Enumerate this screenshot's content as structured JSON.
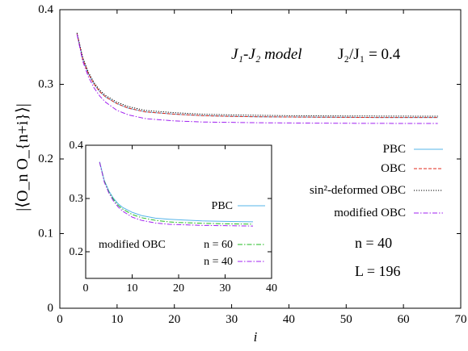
{
  "chart_data": [
    {
      "type": "line",
      "title": "",
      "xlabel": "i",
      "ylabel": "|⟨O_n O_{n+i}⟩|",
      "xlim": [
        0,
        70
      ],
      "ylim": [
        0,
        0.4
      ],
      "xticks": [
        "0",
        "10",
        "20",
        "30",
        "40",
        "50",
        "60",
        "70"
      ],
      "yticks": [
        "0",
        "0.1",
        "0.2",
        "0.3",
        "0.4"
      ],
      "grid": false,
      "legend_position": "right",
      "annotations": {
        "model_label": "J₁-J₂ model",
        "ratio_label": "J₂/J₁ = 0.4",
        "n_label": "n = 40",
        "L_label": "L = 196"
      },
      "x": [
        3,
        4,
        5,
        6,
        7,
        8,
        10,
        12,
        15,
        20,
        25,
        30,
        35,
        40,
        45,
        50,
        55,
        60,
        65,
        66
      ],
      "series": [
        {
          "name": "PBC",
          "color": "#56b4e9",
          "dash": "solid",
          "values": [
            0.368,
            0.334,
            0.314,
            0.3,
            0.29,
            0.283,
            0.274,
            0.268,
            0.263,
            0.26,
            0.258,
            0.257,
            0.2565,
            0.2562,
            0.256,
            0.2558,
            0.2556,
            0.2555,
            0.2555,
            0.2555
          ]
        },
        {
          "name": "OBC",
          "color": "#e0291b",
          "dash": "dashed",
          "values": [
            0.368,
            0.334,
            0.314,
            0.3,
            0.29,
            0.283,
            0.274,
            0.268,
            0.263,
            0.26,
            0.258,
            0.257,
            0.2565,
            0.2562,
            0.256,
            0.2558,
            0.2556,
            0.2555,
            0.2555,
            0.2555
          ]
        },
        {
          "name": "sin²-deformed OBC",
          "color": "#000000",
          "dash": "dotted",
          "values": [
            0.369,
            0.336,
            0.316,
            0.302,
            0.292,
            0.285,
            0.276,
            0.27,
            0.265,
            0.262,
            0.26,
            0.259,
            0.2585,
            0.258,
            0.2578,
            0.2576,
            0.2575,
            0.2574,
            0.2573,
            0.2573
          ]
        },
        {
          "name": "modified OBC",
          "color": "#a020f0",
          "dash": "dashdot",
          "values": [
            0.367,
            0.331,
            0.31,
            0.295,
            0.284,
            0.276,
            0.265,
            0.259,
            0.254,
            0.251,
            0.2495,
            0.249,
            0.2485,
            0.2482,
            0.248,
            0.2478,
            0.2477,
            0.2476,
            0.2475,
            0.2475
          ]
        }
      ]
    },
    {
      "type": "line",
      "title": "",
      "xlabel": "",
      "ylabel": "",
      "xlim": [
        0,
        40
      ],
      "ylim": [
        0.15,
        0.4
      ],
      "xticks": [
        "0",
        "10",
        "20",
        "30",
        "40"
      ],
      "yticks": [
        "0.2",
        "0.3",
        "0.4"
      ],
      "grid": false,
      "legend_position": "right",
      "legend_group_label": "modified OBC",
      "x": [
        3,
        4,
        5,
        6,
        7,
        8,
        10,
        12,
        15,
        18,
        20,
        25,
        30,
        34,
        36
      ],
      "series": [
        {
          "name": "PBC",
          "color": "#56b4e9",
          "dash": "solid",
          "values": [
            0.369,
            0.334,
            0.314,
            0.3,
            0.29,
            0.283,
            0.274,
            0.268,
            0.263,
            0.261,
            0.26,
            0.258,
            0.257,
            0.2565,
            0.2563
          ]
        },
        {
          "name": "n = 60",
          "color": "#22bb22",
          "dash": "dashdot",
          "values": [
            0.368,
            0.333,
            0.312,
            0.298,
            0.287,
            0.28,
            0.27,
            0.264,
            0.259,
            0.256,
            0.255,
            0.2535,
            0.2525,
            0.252,
            0.2518
          ]
        },
        {
          "name": "n = 40",
          "color": "#a020f0",
          "dash": "dashdot",
          "values": [
            0.368,
            0.331,
            0.31,
            0.295,
            0.284,
            0.276,
            0.265,
            0.259,
            0.254,
            0.2515,
            0.251,
            0.2495,
            0.249,
            0.2485,
            0.2483
          ]
        }
      ]
    }
  ]
}
